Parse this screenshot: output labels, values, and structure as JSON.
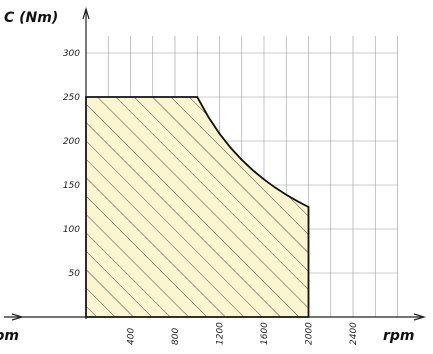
{
  "chart_data": {
    "type": "area",
    "title": "",
    "xlabel": "rpm",
    "xlabel_left": "rpm",
    "ylabel": "C (Nm)",
    "x_ticks": [
      400,
      800,
      1200,
      1600,
      2000,
      2400
    ],
    "y_ticks": [
      50,
      100,
      150,
      200,
      250,
      300
    ],
    "xlim": [
      0,
      2800
    ],
    "ylim": [
      0,
      320
    ],
    "grid": true,
    "legend": "none",
    "fill_color": "#fbf6d0",
    "hatch_color": "#333333",
    "series": [
      {
        "x": [
          0,
          1000,
          1100,
          1200,
          1300,
          1400,
          1500,
          1600,
          1700,
          1800,
          1900,
          2000,
          2000
        ],
        "y": [
          250,
          250,
          227.3,
          208.3,
          192.3,
          178.6,
          166.7,
          156.3,
          147.1,
          138.9,
          131.6,
          125,
          0
        ]
      }
    ]
  }
}
